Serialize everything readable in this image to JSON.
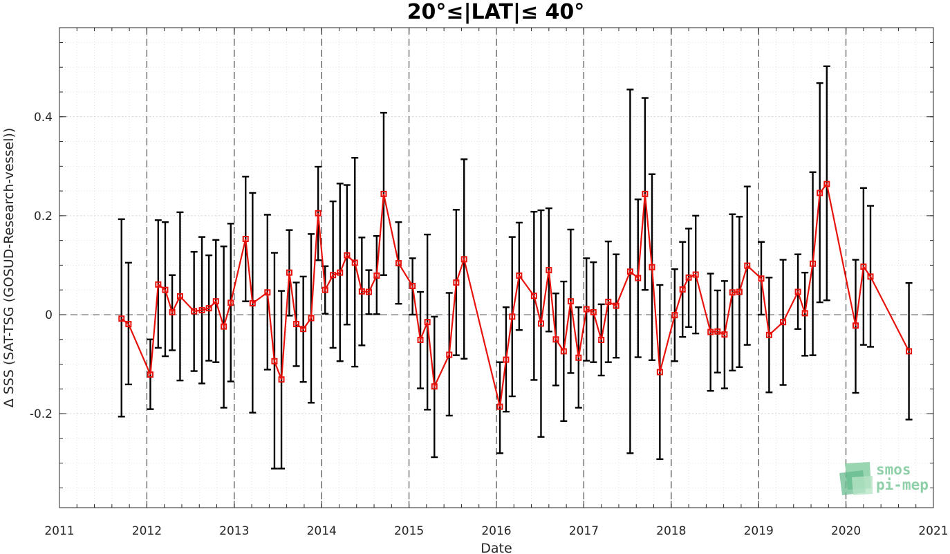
{
  "chart_data": {
    "type": "scatter",
    "title": "20°≤|LAT|≤ 40°",
    "xlabel": "Date",
    "ylabel": "Δ SSS (SAT-TSG (GOSUD-Research-vessel))",
    "xlim": [
      2011,
      2021
    ],
    "ylim": [
      -0.39,
      0.58
    ],
    "x_ticks": [
      2011,
      2012,
      2013,
      2014,
      2015,
      2016,
      2017,
      2018,
      2019,
      2020,
      2021
    ],
    "x_tick_labels": [
      "2011",
      "2012",
      "2013",
      "2014",
      "2015",
      "2016",
      "2017",
      "2018",
      "2019",
      "2020",
      "2021"
    ],
    "y_ticks": [
      -0.2,
      0,
      0.2,
      0.4
    ],
    "y_tick_labels": [
      "-0.2",
      "0",
      "0.2",
      "0.4"
    ],
    "grid": true,
    "zero_line": true,
    "year_lines": true,
    "series": [
      {
        "color": "#e8120c",
        "errorbar_color": "#000000",
        "points": [
          {
            "x": 2011.71,
            "y": -0.008,
            "lo": -0.206,
            "hi": 0.193
          },
          {
            "x": 2011.79,
            "y": -0.019,
            "lo": -0.141,
            "hi": 0.105
          },
          {
            "x": 2012.04,
            "y": -0.121,
            "lo": -0.191,
            "hi": -0.05
          },
          {
            "x": 2012.13,
            "y": 0.061,
            "lo": -0.067,
            "hi": 0.191
          },
          {
            "x": 2012.21,
            "y": 0.05,
            "lo": -0.084,
            "hi": 0.187
          },
          {
            "x": 2012.29,
            "y": 0.005,
            "lo": -0.072,
            "hi": 0.08
          },
          {
            "x": 2012.38,
            "y": 0.037,
            "lo": -0.133,
            "hi": 0.207
          },
          {
            "x": 2012.54,
            "y": 0.007,
            "lo": -0.114,
            "hi": 0.127
          },
          {
            "x": 2012.63,
            "y": 0.009,
            "lo": -0.139,
            "hi": 0.157
          },
          {
            "x": 2012.71,
            "y": 0.013,
            "lo": -0.093,
            "hi": 0.12
          },
          {
            "x": 2012.79,
            "y": 0.027,
            "lo": -0.096,
            "hi": 0.151
          },
          {
            "x": 2012.88,
            "y": -0.024,
            "lo": -0.188,
            "hi": 0.138
          },
          {
            "x": 2012.96,
            "y": 0.024,
            "lo": -0.135,
            "hi": 0.184
          },
          {
            "x": 2013.13,
            "y": 0.153,
            "lo": 0.027,
            "hi": 0.279
          },
          {
            "x": 2013.21,
            "y": 0.023,
            "lo": -0.198,
            "hi": 0.246
          },
          {
            "x": 2013.38,
            "y": 0.045,
            "lo": -0.111,
            "hi": 0.202
          },
          {
            "x": 2013.46,
            "y": -0.094,
            "lo": -0.311,
            "hi": 0.125
          },
          {
            "x": 2013.54,
            "y": -0.131,
            "lo": -0.311,
            "hi": 0.048
          },
          {
            "x": 2013.63,
            "y": 0.085,
            "lo": -0.002,
            "hi": 0.171
          },
          {
            "x": 2013.71,
            "y": -0.019,
            "lo": -0.104,
            "hi": 0.065
          },
          {
            "x": 2013.79,
            "y": -0.029,
            "lo": -0.136,
            "hi": 0.077
          },
          {
            "x": 2013.88,
            "y": -0.007,
            "lo": -0.178,
            "hi": 0.163
          },
          {
            "x": 2013.96,
            "y": 0.205,
            "lo": 0.11,
            "hi": 0.299
          },
          {
            "x": 2014.04,
            "y": 0.05,
            "lo": 0.002,
            "hi": 0.098
          },
          {
            "x": 2014.13,
            "y": 0.08,
            "lo": -0.067,
            "hi": 0.229
          },
          {
            "x": 2014.21,
            "y": 0.085,
            "lo": -0.094,
            "hi": 0.265
          },
          {
            "x": 2014.29,
            "y": 0.12,
            "lo": -0.02,
            "hi": 0.262
          },
          {
            "x": 2014.38,
            "y": 0.105,
            "lo": -0.105,
            "hi": 0.317
          },
          {
            "x": 2014.46,
            "y": 0.047,
            "lo": -0.062,
            "hi": 0.156
          },
          {
            "x": 2014.54,
            "y": 0.046,
            "lo": 0.001,
            "hi": 0.09
          },
          {
            "x": 2014.63,
            "y": 0.079,
            "lo": 0.001,
            "hi": 0.159
          },
          {
            "x": 2014.71,
            "y": 0.244,
            "lo": 0.08,
            "hi": 0.408
          },
          {
            "x": 2014.88,
            "y": 0.104,
            "lo": 0.022,
            "hi": 0.187
          },
          {
            "x": 2015.04,
            "y": 0.058,
            "lo": 0.0,
            "hi": 0.114
          },
          {
            "x": 2015.13,
            "y": -0.051,
            "lo": -0.149,
            "hi": 0.046
          },
          {
            "x": 2015.21,
            "y": -0.015,
            "lo": -0.192,
            "hi": 0.162
          },
          {
            "x": 2015.29,
            "y": -0.145,
            "lo": -0.288,
            "hi": -0.004
          },
          {
            "x": 2015.46,
            "y": -0.081,
            "lo": -0.204,
            "hi": 0.044
          },
          {
            "x": 2015.54,
            "y": 0.065,
            "lo": -0.082,
            "hi": 0.212
          },
          {
            "x": 2015.63,
            "y": 0.112,
            "lo": -0.089,
            "hi": 0.314
          },
          {
            "x": 2016.04,
            "y": -0.186,
            "lo": -0.28,
            "hi": -0.096
          },
          {
            "x": 2016.11,
            "y": -0.091,
            "lo": -0.196,
            "hi": 0.015
          },
          {
            "x": 2016.18,
            "y": -0.004,
            "lo": -0.165,
            "hi": 0.157
          },
          {
            "x": 2016.26,
            "y": 0.079,
            "lo": -0.031,
            "hi": 0.186
          },
          {
            "x": 2016.43,
            "y": 0.038,
            "lo": -0.132,
            "hi": 0.208
          },
          {
            "x": 2016.51,
            "y": -0.018,
            "lo": -0.247,
            "hi": 0.211
          },
          {
            "x": 2016.6,
            "y": 0.09,
            "lo": -0.034,
            "hi": 0.215
          },
          {
            "x": 2016.68,
            "y": -0.05,
            "lo": -0.143,
            "hi": 0.043
          },
          {
            "x": 2016.77,
            "y": -0.074,
            "lo": -0.215,
            "hi": 0.067
          },
          {
            "x": 2016.85,
            "y": 0.027,
            "lo": -0.118,
            "hi": 0.172
          },
          {
            "x": 2016.94,
            "y": -0.087,
            "lo": -0.188,
            "hi": 0.015
          },
          {
            "x": 2017.03,
            "y": 0.011,
            "lo": -0.093,
            "hi": 0.114
          },
          {
            "x": 2017.11,
            "y": 0.005,
            "lo": -0.096,
            "hi": 0.106
          },
          {
            "x": 2017.2,
            "y": -0.051,
            "lo": -0.123,
            "hi": 0.021
          },
          {
            "x": 2017.28,
            "y": 0.026,
            "lo": -0.096,
            "hi": 0.148
          },
          {
            "x": 2017.37,
            "y": 0.018,
            "lo": -0.087,
            "hi": 0.122
          },
          {
            "x": 2017.53,
            "y": 0.087,
            "lo": -0.28,
            "hi": 0.455
          },
          {
            "x": 2017.62,
            "y": 0.074,
            "lo": -0.086,
            "hi": 0.233
          },
          {
            "x": 2017.7,
            "y": 0.244,
            "lo": 0.05,
            "hi": 0.438
          },
          {
            "x": 2017.78,
            "y": 0.096,
            "lo": -0.092,
            "hi": 0.284
          },
          {
            "x": 2017.87,
            "y": -0.116,
            "lo": -0.292,
            "hi": 0.06
          },
          {
            "x": 2018.04,
            "y": -0.001,
            "lo": -0.094,
            "hi": 0.092
          },
          {
            "x": 2018.13,
            "y": 0.051,
            "lo": -0.045,
            "hi": 0.147
          },
          {
            "x": 2018.2,
            "y": 0.075,
            "lo": -0.025,
            "hi": 0.174
          },
          {
            "x": 2018.28,
            "y": 0.081,
            "lo": -0.038,
            "hi": 0.2
          },
          {
            "x": 2018.45,
            "y": -0.035,
            "lo": -0.154,
            "hi": 0.083
          },
          {
            "x": 2018.53,
            "y": -0.034,
            "lo": -0.117,
            "hi": 0.049
          },
          {
            "x": 2018.61,
            "y": -0.04,
            "lo": -0.149,
            "hi": 0.068
          },
          {
            "x": 2018.7,
            "y": 0.045,
            "lo": -0.113,
            "hi": 0.203
          },
          {
            "x": 2018.78,
            "y": 0.046,
            "lo": -0.106,
            "hi": 0.198
          },
          {
            "x": 2018.87,
            "y": 0.099,
            "lo": -0.061,
            "hi": 0.259
          },
          {
            "x": 2019.03,
            "y": 0.073,
            "lo": 0.0,
            "hi": 0.147
          },
          {
            "x": 2019.12,
            "y": -0.041,
            "lo": -0.157,
            "hi": 0.075
          },
          {
            "x": 2019.28,
            "y": -0.015,
            "lo": -0.142,
            "hi": 0.111
          },
          {
            "x": 2019.45,
            "y": 0.046,
            "lo": -0.029,
            "hi": 0.122
          },
          {
            "x": 2019.53,
            "y": 0.003,
            "lo": -0.083,
            "hi": 0.085
          },
          {
            "x": 2019.62,
            "y": 0.103,
            "lo": -0.082,
            "hi": 0.288
          },
          {
            "x": 2019.7,
            "y": 0.246,
            "lo": 0.025,
            "hi": 0.468
          },
          {
            "x": 2019.78,
            "y": 0.264,
            "lo": 0.029,
            "hi": 0.502
          },
          {
            "x": 2020.11,
            "y": -0.022,
            "lo": -0.158,
            "hi": 0.111
          },
          {
            "x": 2020.2,
            "y": 0.097,
            "lo": -0.061,
            "hi": 0.256
          },
          {
            "x": 2020.28,
            "y": 0.077,
            "lo": -0.065,
            "hi": 0.22
          },
          {
            "x": 2020.72,
            "y": -0.074,
            "lo": -0.212,
            "hi": 0.064
          }
        ]
      }
    ]
  },
  "logo": {
    "line1": "smos",
    "line2": "pi-mep",
    "color": "#8fd0a8"
  }
}
